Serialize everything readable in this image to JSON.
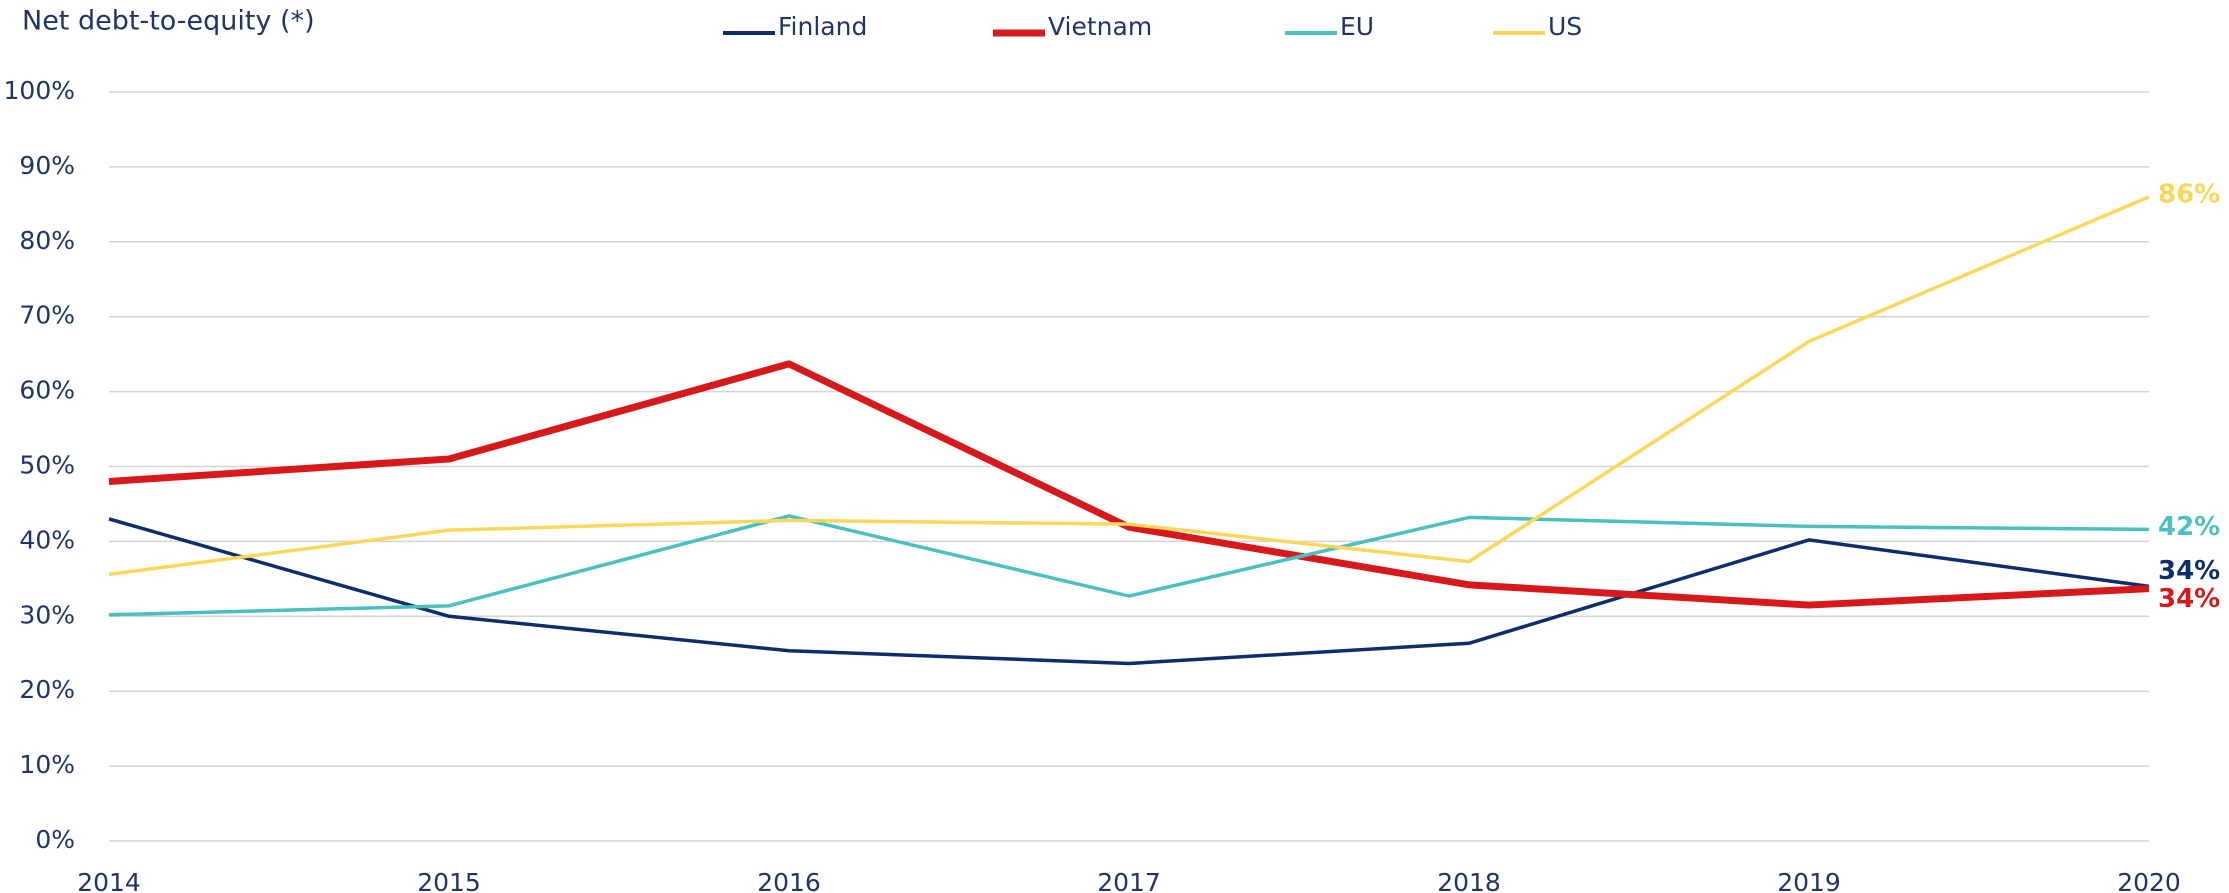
{
  "chart_data": {
    "type": "line",
    "title": "Net debt-to-equity (*)",
    "categories": [
      "2014",
      "2015",
      "2016",
      "2017",
      "2018",
      "2019",
      "2020"
    ],
    "series": [
      {
        "name": "Finland",
        "color": "#0d2d6c",
        "values": [
          43,
          30,
          25.4,
          23.7,
          26.4,
          40.2,
          34
        ],
        "value_labels": [
          null,
          null,
          null,
          null,
          null,
          null,
          "34%"
        ]
      },
      {
        "name": "Vietnam",
        "color": "#d7191c",
        "values": [
          48,
          51,
          63.7,
          41.9,
          34.2,
          31.5,
          33.7
        ],
        "value_labels": [
          null,
          null,
          null,
          null,
          null,
          null,
          "34%"
        ]
      },
      {
        "name": "EU",
        "color": "#4bc0c0",
        "values": [
          30.2,
          31.4,
          43.4,
          32.7,
          43.2,
          42,
          41.6
        ],
        "value_labels": [
          null,
          null,
          null,
          null,
          null,
          null,
          "42%"
        ]
      },
      {
        "name": "US",
        "color": "#fcd75b",
        "values": [
          35.6,
          41.5,
          42.8,
          42.3,
          37.3,
          66.7,
          86
        ],
        "value_labels": [
          null,
          null,
          null,
          null,
          null,
          null,
          "86%"
        ]
      }
    ],
    "ylim": [
      0,
      100
    ],
    "yticks": [
      {
        "value": 0,
        "label": "0%"
      },
      {
        "value": 10,
        "label": "10%"
      },
      {
        "value": 20,
        "label": "20%"
      },
      {
        "value": 30,
        "label": "30%"
      },
      {
        "value": 40,
        "label": "40%"
      },
      {
        "value": 50,
        "label": "50%"
      },
      {
        "value": 60,
        "label": "60%"
      },
      {
        "value": 70,
        "label": "70%"
      },
      {
        "value": 80,
        "label": "80%"
      },
      {
        "value": 90,
        "label": "90%"
      },
      {
        "value": 100,
        "label": "100%"
      }
    ],
    "grid": true,
    "legend": "top"
  }
}
